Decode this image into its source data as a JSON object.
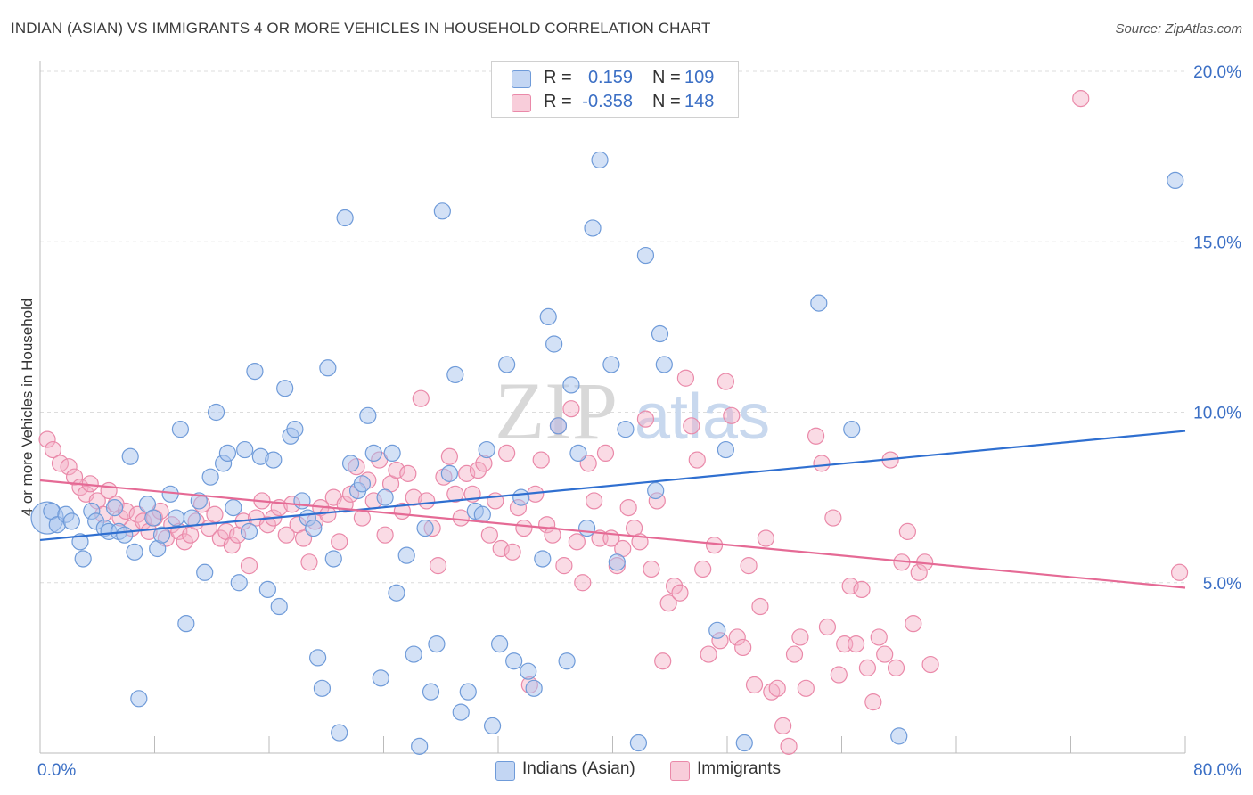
{
  "title": "INDIAN (ASIAN) VS IMMIGRANTS 4 OR MORE VEHICLES IN HOUSEHOLD CORRELATION CHART",
  "source": "Source: ZipAtlas.com",
  "watermark": {
    "zip": "ZIP",
    "atlas": "atlas"
  },
  "legend_top": {
    "rows": [
      {
        "r_label": "R =",
        "r_value": "0.159",
        "n_label": "N =",
        "n_value": "109",
        "color": "#a8c4ee"
      },
      {
        "r_label": "R =",
        "r_value": "-0.358",
        "n_label": "N =",
        "n_value": "148",
        "color": "#f4afc6"
      }
    ]
  },
  "legend_bottom": {
    "items": [
      "Indians (Asian)",
      "Immigrants"
    ]
  },
  "colors": {
    "blue_fill": "#a8c4ee",
    "blue_stroke": "#6f9bd9",
    "blue_line": "#2f6fd0",
    "pink_fill": "#f4afc6",
    "pink_stroke": "#ea89a9",
    "pink_line": "#e56a95",
    "grid": "#dcdcdc",
    "tick_text": "#3b6fc5"
  },
  "chart_data": {
    "type": "scatter",
    "title": "INDIAN (ASIAN) VS IMMIGRANTS 4 OR MORE VEHICLES IN HOUSEHOLD CORRELATION CHART",
    "xlabel": "",
    "ylabel": "4 or more Vehicles in Household",
    "xlim": [
      0,
      80
    ],
    "ylim": [
      0,
      20
    ],
    "x_tick_labels": [
      "0.0%",
      "80.0%"
    ],
    "y_ticks": [
      5,
      10,
      15,
      20
    ],
    "y_tick_labels": [
      "5.0%",
      "10.0%",
      "15.0%",
      "20.0%"
    ],
    "grid": true,
    "legend_position": "top-center",
    "series": [
      {
        "name": "Indians (Asian)",
        "trendline": {
          "x": [
            0,
            80
          ],
          "y": [
            6.25,
            9.45
          ]
        },
        "points": [
          [
            0.5,
            6.9
          ],
          [
            0.8,
            7.1
          ],
          [
            1.2,
            6.7
          ],
          [
            1.8,
            7.0
          ],
          [
            2.2,
            6.8
          ],
          [
            2.8,
            6.2
          ],
          [
            3.0,
            5.7
          ],
          [
            3.6,
            7.1
          ],
          [
            3.9,
            6.8
          ],
          [
            4.5,
            6.6
          ],
          [
            4.8,
            6.5
          ],
          [
            5.2,
            7.2
          ],
          [
            5.5,
            6.5
          ],
          [
            5.9,
            6.4
          ],
          [
            6.3,
            8.7
          ],
          [
            6.6,
            5.9
          ],
          [
            6.9,
            1.6
          ],
          [
            7.5,
            7.3
          ],
          [
            7.9,
            6.9
          ],
          [
            8.2,
            6.0
          ],
          [
            8.5,
            6.4
          ],
          [
            9.1,
            7.6
          ],
          [
            9.5,
            6.9
          ],
          [
            9.8,
            9.5
          ],
          [
            10.2,
            3.8
          ],
          [
            10.6,
            6.9
          ],
          [
            11.1,
            7.4
          ],
          [
            11.5,
            5.3
          ],
          [
            11.9,
            8.1
          ],
          [
            12.3,
            10.0
          ],
          [
            12.8,
            8.5
          ],
          [
            13.1,
            8.8
          ],
          [
            13.5,
            7.2
          ],
          [
            13.9,
            5.0
          ],
          [
            14.3,
            8.9
          ],
          [
            14.6,
            6.5
          ],
          [
            15.0,
            11.2
          ],
          [
            15.4,
            8.7
          ],
          [
            15.9,
            4.8
          ],
          [
            16.3,
            8.6
          ],
          [
            16.7,
            4.3
          ],
          [
            17.1,
            10.7
          ],
          [
            17.5,
            9.3
          ],
          [
            17.8,
            9.5
          ],
          [
            18.3,
            7.4
          ],
          [
            18.7,
            6.9
          ],
          [
            19.1,
            6.6
          ],
          [
            19.4,
            2.8
          ],
          [
            19.7,
            1.9
          ],
          [
            20.1,
            11.3
          ],
          [
            20.5,
            5.7
          ],
          [
            20.9,
            0.6
          ],
          [
            21.3,
            15.7
          ],
          [
            21.7,
            8.5
          ],
          [
            22.2,
            7.7
          ],
          [
            22.5,
            7.9
          ],
          [
            22.9,
            9.9
          ],
          [
            23.3,
            8.8
          ],
          [
            23.8,
            2.2
          ],
          [
            24.1,
            7.5
          ],
          [
            24.6,
            8.8
          ],
          [
            24.9,
            4.7
          ],
          [
            25.6,
            5.8
          ],
          [
            26.1,
            2.9
          ],
          [
            26.5,
            0.2
          ],
          [
            26.9,
            6.6
          ],
          [
            27.3,
            1.8
          ],
          [
            27.7,
            3.2
          ],
          [
            28.1,
            15.9
          ],
          [
            28.6,
            8.2
          ],
          [
            29.0,
            11.1
          ],
          [
            29.4,
            1.2
          ],
          [
            29.9,
            1.8
          ],
          [
            30.4,
            7.1
          ],
          [
            30.9,
            7.0
          ],
          [
            31.2,
            8.9
          ],
          [
            31.6,
            0.8
          ],
          [
            32.1,
            3.2
          ],
          [
            32.6,
            11.4
          ],
          [
            33.1,
            2.7
          ],
          [
            33.6,
            7.5
          ],
          [
            34.1,
            2.4
          ],
          [
            34.5,
            1.9
          ],
          [
            35.1,
            5.7
          ],
          [
            35.5,
            12.8
          ],
          [
            35.9,
            12.0
          ],
          [
            36.2,
            9.6
          ],
          [
            36.8,
            2.7
          ],
          [
            37.1,
            10.8
          ],
          [
            37.6,
            8.8
          ],
          [
            38.2,
            6.6
          ],
          [
            38.6,
            15.4
          ],
          [
            39.1,
            17.4
          ],
          [
            39.9,
            11.4
          ],
          [
            40.3,
            5.6
          ],
          [
            40.9,
            9.5
          ],
          [
            41.8,
            0.3
          ],
          [
            42.3,
            14.6
          ],
          [
            43.0,
            7.7
          ],
          [
            43.3,
            12.3
          ],
          [
            43.6,
            11.4
          ],
          [
            47.3,
            3.6
          ],
          [
            47.9,
            8.9
          ],
          [
            49.2,
            0.3
          ],
          [
            54.4,
            13.2
          ],
          [
            56.7,
            9.5
          ],
          [
            60.0,
            0.5
          ],
          [
            79.3,
            16.8
          ]
        ]
      },
      {
        "name": "Immigrants",
        "trendline": {
          "x": [
            0,
            80
          ],
          "y": [
            8.0,
            4.85
          ]
        },
        "points": [
          [
            0.5,
            9.2
          ],
          [
            0.9,
            8.9
          ],
          [
            1.4,
            8.5
          ],
          [
            2.0,
            8.4
          ],
          [
            2.4,
            8.1
          ],
          [
            2.8,
            7.8
          ],
          [
            3.2,
            7.6
          ],
          [
            3.5,
            7.9
          ],
          [
            4.0,
            7.4
          ],
          [
            4.4,
            7.0
          ],
          [
            4.8,
            7.7
          ],
          [
            5.3,
            7.3
          ],
          [
            5.6,
            6.9
          ],
          [
            6.0,
            7.1
          ],
          [
            6.4,
            6.6
          ],
          [
            6.8,
            7.0
          ],
          [
            7.2,
            6.8
          ],
          [
            7.6,
            6.5
          ],
          [
            8.0,
            6.9
          ],
          [
            8.4,
            7.1
          ],
          [
            8.8,
            6.3
          ],
          [
            9.2,
            6.7
          ],
          [
            9.7,
            6.5
          ],
          [
            10.1,
            6.2
          ],
          [
            10.5,
            6.4
          ],
          [
            10.9,
            6.8
          ],
          [
            11.3,
            7.3
          ],
          [
            11.8,
            6.6
          ],
          [
            12.2,
            7.0
          ],
          [
            12.6,
            6.3
          ],
          [
            13.0,
            6.5
          ],
          [
            13.4,
            6.1
          ],
          [
            13.8,
            6.4
          ],
          [
            14.2,
            6.8
          ],
          [
            14.6,
            5.5
          ],
          [
            15.1,
            6.9
          ],
          [
            15.5,
            7.4
          ],
          [
            15.9,
            6.7
          ],
          [
            16.3,
            6.9
          ],
          [
            16.7,
            7.2
          ],
          [
            17.2,
            6.4
          ],
          [
            17.6,
            7.3
          ],
          [
            18.0,
            6.7
          ],
          [
            18.4,
            6.3
          ],
          [
            18.8,
            5.6
          ],
          [
            19.2,
            6.8
          ],
          [
            19.6,
            7.2
          ],
          [
            20.1,
            7.0
          ],
          [
            20.5,
            7.5
          ],
          [
            20.9,
            6.2
          ],
          [
            21.3,
            7.3
          ],
          [
            21.7,
            7.6
          ],
          [
            22.1,
            8.4
          ],
          [
            22.5,
            6.9
          ],
          [
            22.9,
            8.0
          ],
          [
            23.3,
            7.4
          ],
          [
            23.7,
            8.6
          ],
          [
            24.1,
            6.4
          ],
          [
            24.5,
            7.9
          ],
          [
            24.9,
            8.3
          ],
          [
            25.3,
            7.1
          ],
          [
            25.7,
            8.2
          ],
          [
            26.1,
            7.5
          ],
          [
            26.6,
            10.4
          ],
          [
            27.0,
            7.4
          ],
          [
            27.4,
            6.6
          ],
          [
            27.8,
            5.5
          ],
          [
            28.2,
            8.1
          ],
          [
            28.6,
            8.7
          ],
          [
            29.0,
            7.6
          ],
          [
            29.4,
            6.9
          ],
          [
            29.8,
            8.2
          ],
          [
            30.2,
            7.6
          ],
          [
            30.6,
            8.3
          ],
          [
            31.0,
            8.5
          ],
          [
            31.4,
            6.4
          ],
          [
            31.8,
            7.4
          ],
          [
            32.2,
            6.0
          ],
          [
            32.6,
            8.8
          ],
          [
            33.0,
            5.9
          ],
          [
            33.4,
            7.2
          ],
          [
            33.8,
            6.6
          ],
          [
            34.2,
            2.0
          ],
          [
            34.6,
            7.6
          ],
          [
            35.0,
            8.6
          ],
          [
            35.4,
            6.7
          ],
          [
            35.8,
            6.4
          ],
          [
            36.2,
            9.6
          ],
          [
            36.6,
            5.5
          ],
          [
            37.1,
            10.1
          ],
          [
            37.5,
            6.2
          ],
          [
            37.9,
            5.0
          ],
          [
            38.3,
            8.5
          ],
          [
            38.7,
            7.4
          ],
          [
            39.1,
            6.3
          ],
          [
            39.5,
            8.8
          ],
          [
            39.9,
            6.3
          ],
          [
            40.3,
            5.5
          ],
          [
            40.7,
            6.0
          ],
          [
            41.1,
            7.2
          ],
          [
            41.5,
            6.6
          ],
          [
            41.9,
            6.2
          ],
          [
            42.3,
            9.8
          ],
          [
            42.7,
            5.4
          ],
          [
            43.1,
            7.4
          ],
          [
            43.5,
            2.7
          ],
          [
            43.9,
            4.4
          ],
          [
            44.3,
            4.9
          ],
          [
            44.7,
            4.7
          ],
          [
            45.1,
            11.0
          ],
          [
            45.5,
            9.6
          ],
          [
            45.9,
            8.6
          ],
          [
            46.3,
            5.4
          ],
          [
            46.7,
            2.9
          ],
          [
            47.1,
            6.1
          ],
          [
            47.5,
            3.3
          ],
          [
            47.9,
            10.9
          ],
          [
            48.3,
            9.9
          ],
          [
            48.7,
            3.4
          ],
          [
            49.1,
            3.1
          ],
          [
            49.5,
            5.5
          ],
          [
            49.9,
            2.0
          ],
          [
            50.3,
            4.3
          ],
          [
            50.7,
            6.3
          ],
          [
            51.1,
            1.8
          ],
          [
            51.5,
            1.9
          ],
          [
            51.9,
            0.8
          ],
          [
            52.3,
            0.2
          ],
          [
            52.7,
            2.9
          ],
          [
            53.1,
            3.4
          ],
          [
            53.5,
            1.9
          ],
          [
            54.2,
            9.3
          ],
          [
            54.6,
            8.5
          ],
          [
            55.0,
            3.7
          ],
          [
            55.4,
            6.9
          ],
          [
            55.8,
            2.3
          ],
          [
            56.2,
            3.2
          ],
          [
            56.6,
            4.9
          ],
          [
            57.0,
            3.2
          ],
          [
            57.4,
            4.8
          ],
          [
            57.8,
            2.5
          ],
          [
            58.2,
            1.5
          ],
          [
            58.6,
            3.4
          ],
          [
            59.0,
            2.9
          ],
          [
            59.4,
            8.6
          ],
          [
            59.8,
            2.5
          ],
          [
            60.2,
            5.6
          ],
          [
            60.6,
            6.5
          ],
          [
            61.0,
            3.8
          ],
          [
            61.4,
            5.3
          ],
          [
            61.8,
            5.6
          ],
          [
            62.2,
            2.6
          ],
          [
            72.7,
            19.2
          ],
          [
            79.6,
            5.3
          ]
        ]
      }
    ]
  }
}
